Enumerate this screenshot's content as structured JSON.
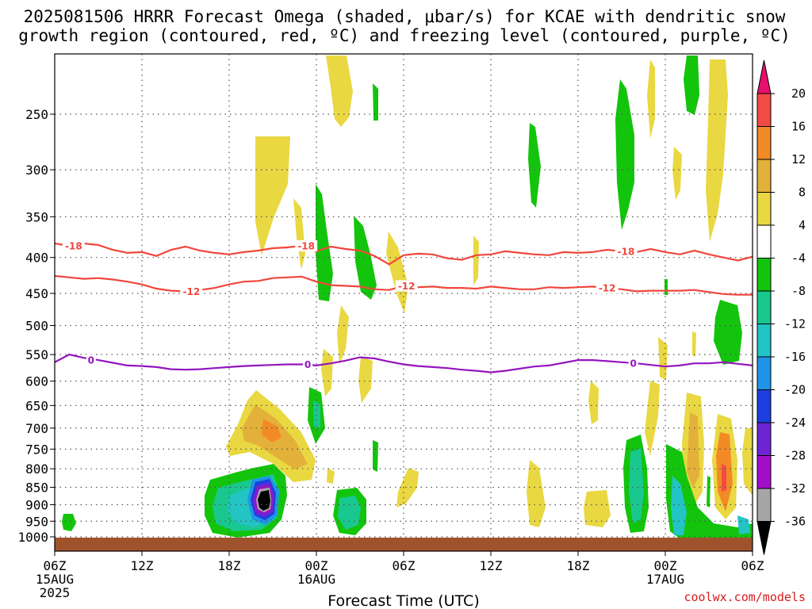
{
  "title": {
    "line1": "2025081506 HRRR Forecast Omega (shaded, μbar/s) for KCAE with dendritic snow",
    "line2": "growth region (contoured, red, ºC) and freezing level (contoured, purple, ºC)"
  },
  "credit": "coolwx.com/models",
  "chart_data": {
    "type": "heatmap",
    "title": "2025081506 HRRR Forecast Omega (shaded, μbar/s) for KCAE with dendritic snow growth region (contoured, red, ºC) and freezing level (contoured, purple, ºC)",
    "xlabel": "Forecast Time (UTC)",
    "ylabel": "",
    "x_unit": "forecast hour",
    "xlim": [
      0,
      48
    ],
    "y_scale": "log-pressure (inverted)",
    "ylim": [
      1000,
      200
    ],
    "grid": true,
    "x_ticks": [
      {
        "hour": 0,
        "label": "06Z",
        "sub1": "15AUG",
        "sub2": "2025"
      },
      {
        "hour": 6,
        "label": "12Z",
        "sub1": "",
        "sub2": ""
      },
      {
        "hour": 12,
        "label": "18Z",
        "sub1": "",
        "sub2": ""
      },
      {
        "hour": 18,
        "label": "00Z",
        "sub1": "16AUG",
        "sub2": ""
      },
      {
        "hour": 24,
        "label": "06Z",
        "sub1": "",
        "sub2": ""
      },
      {
        "hour": 30,
        "label": "12Z",
        "sub1": "",
        "sub2": ""
      },
      {
        "hour": 36,
        "label": "18Z",
        "sub1": "",
        "sub2": ""
      },
      {
        "hour": 42,
        "label": "00Z",
        "sub1": "17AUG",
        "sub2": ""
      },
      {
        "hour": 48,
        "label": "06Z",
        "sub1": "",
        "sub2": ""
      }
    ],
    "y_ticks": [
      250,
      300,
      350,
      400,
      450,
      500,
      550,
      600,
      650,
      700,
      750,
      800,
      850,
      900,
      950,
      1000
    ],
    "colorbar": {
      "labels": [
        "20",
        "16",
        "12",
        "8",
        "4",
        "-4",
        "-8",
        "-12",
        "-16",
        "-20",
        "-24",
        "-28",
        "-32",
        "-36"
      ],
      "levels": [
        20,
        16,
        12,
        8,
        4,
        -4,
        -8,
        -12,
        -16,
        -20,
        -24,
        -28,
        -32,
        -36
      ],
      "colors": [
        "#e8106e",
        "#f24b43",
        "#f28a26",
        "#e3b13a",
        "#e9d842",
        "#ffffff",
        "#13c40c",
        "#19c88f",
        "#22c4c4",
        "#1f94e6",
        "#1b3fe0",
        "#6e24d2",
        "#a20fc8",
        "#a6a6a6",
        "#000000"
      ]
    },
    "series": [
      {
        "name": "",
        "kind": "contour",
        "value": -18,
        "label": "-18",
        "color": "#f0473c",
        "hours": [
          0,
          1,
          2,
          3,
          4,
          5,
          6,
          7,
          8,
          9,
          10,
          11,
          12,
          13,
          14,
          15,
          16,
          17,
          18,
          19,
          20,
          21,
          22,
          23,
          24,
          25,
          26,
          27,
          28,
          29,
          30,
          31,
          32,
          33,
          34,
          35,
          36,
          37,
          38,
          39,
          40,
          41,
          42,
          43,
          44,
          45,
          46,
          47,
          48
        ],
        "pressure_hPa": [
          382,
          385,
          382,
          384,
          390,
          394,
          393,
          398,
          390,
          386,
          391,
          394,
          396,
          393,
          391,
          388,
          387,
          385,
          392,
          386,
          389,
          391,
          398,
          409,
          397,
          395,
          396,
          401,
          403,
          397,
          396,
          392,
          394,
          396,
          397,
          393,
          394,
          393,
          390,
          392,
          393,
          389,
          393,
          396,
          391,
          396,
          400,
          404,
          399
        ],
        "label_hours": [
          1.3,
          17.3,
          39.3
        ]
      },
      {
        "name": "",
        "kind": "contour",
        "value": -12,
        "label": "-12",
        "color": "#f0473c",
        "hours": [
          0,
          1,
          2,
          3,
          4,
          5,
          6,
          7,
          8,
          9,
          10,
          11,
          12,
          13,
          14,
          15,
          16,
          17,
          18,
          19,
          20,
          21,
          22,
          23,
          24,
          25,
          26,
          27,
          28,
          29,
          30,
          31,
          32,
          33,
          34,
          35,
          36,
          37,
          38,
          39,
          40,
          41,
          42,
          43,
          44,
          45,
          46,
          47,
          48
        ],
        "pressure_hPa": [
          425,
          427,
          429,
          428,
          430,
          433,
          437,
          443,
          446,
          447,
          445,
          442,
          437,
          433,
          432,
          428,
          427,
          426,
          433,
          438,
          439,
          440,
          444,
          445,
          439,
          441,
          440,
          442,
          442,
          443,
          440,
          442,
          444,
          444,
          441,
          442,
          441,
          440,
          442,
          444,
          447,
          446,
          446,
          446,
          445,
          448,
          451,
          452,
          452
        ],
        "label_hours": [
          9.4,
          24.2,
          38.0
        ]
      },
      {
        "name": "",
        "kind": "contour",
        "value": 0,
        "label": "0",
        "color": "#9415bd",
        "hours": [
          0,
          1,
          2,
          3,
          4,
          5,
          6,
          7,
          8,
          9,
          10,
          11,
          12,
          13,
          14,
          15,
          16,
          17,
          18,
          19,
          20,
          21,
          22,
          23,
          24,
          25,
          26,
          27,
          28,
          29,
          30,
          31,
          32,
          33,
          34,
          35,
          36,
          37,
          38,
          39,
          40,
          41,
          42,
          43,
          44,
          45,
          46,
          47,
          48
        ],
        "pressure_hPa": [
          564,
          550,
          556,
          560,
          565,
          570,
          571,
          573,
          577,
          578,
          577,
          575,
          573,
          571,
          570,
          569,
          568,
          568,
          570,
          566,
          561,
          555,
          557,
          563,
          568,
          571,
          573,
          575,
          578,
          580,
          583,
          580,
          576,
          572,
          570,
          565,
          560,
          560,
          562,
          564,
          566,
          569,
          572,
          570,
          566,
          566,
          564,
          567,
          570
        ],
        "label_hours": [
          2.5,
          17.4,
          39.8
        ]
      }
    ],
    "omega_features": [
      {
        "hour": 1.8,
        "pressure_hPa": 950,
        "value": -10,
        "label": "updraft (green)"
      },
      {
        "hour": 14.5,
        "pressure_hPa": 880,
        "value": -40,
        "label": "strong updraft core"
      },
      {
        "hour": 14.8,
        "pressure_hPa": 700,
        "value": 14,
        "label": "descent core"
      },
      {
        "hour": 20.3,
        "pressure_hPa": 920,
        "value": -16,
        "label": "updraft"
      },
      {
        "hour": 41.2,
        "pressure_hPa": 880,
        "value": -12,
        "label": "updraft"
      },
      {
        "hour": 46.3,
        "pressure_hPa": 820,
        "value": 18,
        "label": "descent core"
      },
      {
        "hour": 47.2,
        "pressure_hPa": 520,
        "value": -8,
        "label": "updraft"
      }
    ]
  }
}
